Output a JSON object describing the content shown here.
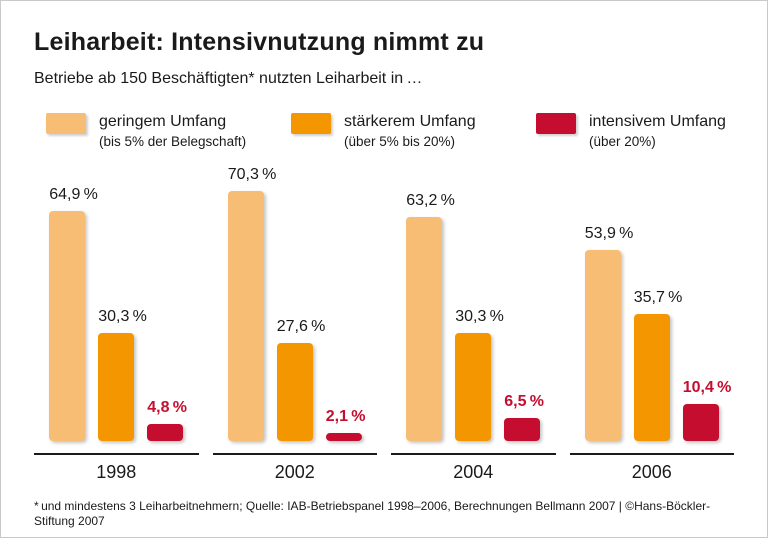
{
  "header": {
    "title": "Leiharbeit: Intensivnutzung nimmt zu",
    "subtitle": "Betriebe ab 150 Beschäftigten* nutzten Leiharbeit in …"
  },
  "legend": {
    "items": [
      {
        "icon": "swatch-light-orange",
        "label": "geringem Umfang",
        "sublabel": "(bis 5% der Belegschaft)",
        "color": "#F7BD74"
      },
      {
        "icon": "swatch-orange",
        "label": "stärkerem Umfang",
        "sublabel": "(über 5% bis 20%)",
        "color": "#F49600"
      },
      {
        "icon": "swatch-red",
        "label": "intensivem Umfang",
        "sublabel": "(über 20%)",
        "color": "#C50E2F"
      }
    ]
  },
  "chart_data": {
    "type": "bar",
    "title": "Leiharbeit: Intensivnutzung nimmt zu",
    "subtitle": "Betriebe ab 150 Beschäftigten* nutzten Leiharbeit in …",
    "categories": [
      "1998",
      "2002",
      "2004",
      "2006"
    ],
    "series": [
      {
        "name": "geringem Umfang (bis 5% der Belegschaft)",
        "color": "#F7BD74",
        "values": [
          64.9,
          70.3,
          63.2,
          53.9
        ],
        "labels": [
          "64,9 %",
          "70,3 %",
          "63,2 %",
          "53,9 %"
        ],
        "label_color": "#1a1a1a",
        "label_bold": false
      },
      {
        "name": "stärkerem Umfang (über 5% bis 20%)",
        "color": "#F49600",
        "values": [
          30.3,
          27.6,
          30.3,
          35.7
        ],
        "labels": [
          "30,3 %",
          "27,6 %",
          "30,3 %",
          "35,7 %"
        ],
        "label_color": "#1a1a1a",
        "label_bold": false
      },
      {
        "name": "intensivem Umfang (über 20%)",
        "color": "#C50E2F",
        "values": [
          4.8,
          2.1,
          6.5,
          10.4
        ],
        "labels": [
          "4,8 %",
          "2,1 %",
          "6,5 %",
          "10,4 %"
        ],
        "label_color": "#C50E2F",
        "label_bold": true
      }
    ],
    "unit": "%",
    "ylim": [
      0,
      79
    ],
    "grid": false,
    "legend_position": "top",
    "xlabel": "",
    "ylabel": ""
  },
  "footer": {
    "text": "* und mindestens 3 Leiharbeitnehmern; Quelle: IAB-Betriebspanel 1998–2006, Berechnungen Bellmann 2007 | ©Hans-Böckler-Stiftung 2007"
  }
}
